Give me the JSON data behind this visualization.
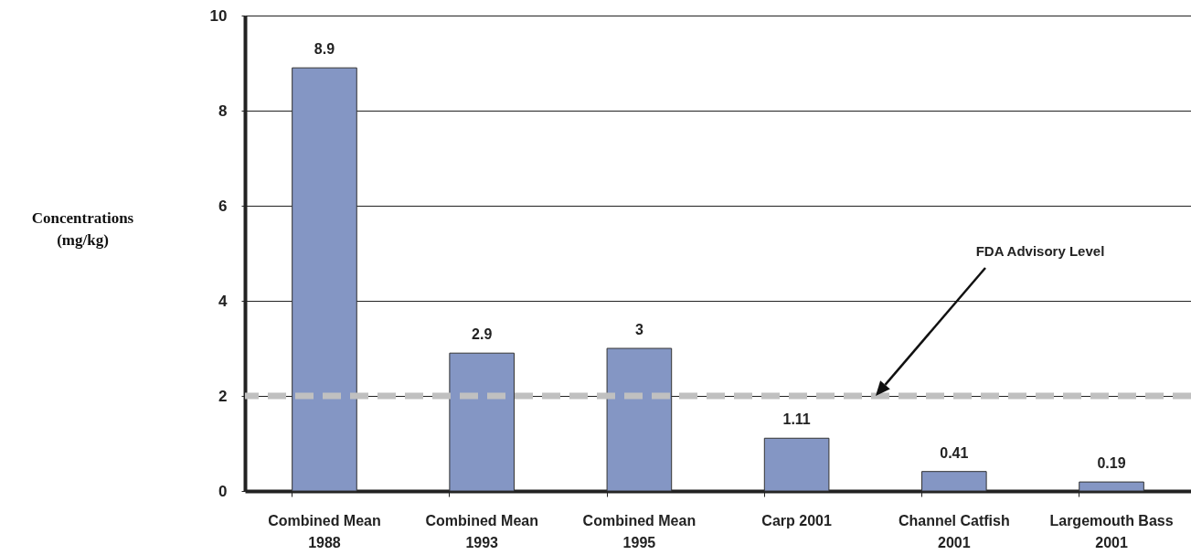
{
  "chart_data": {
    "type": "bar",
    "ylabel": "Concentrations (mg/kg)",
    "categories": [
      "Combined Mean 1988",
      "Combined Mean 1993",
      "Combined Mean 1995",
      "Carp  2001",
      "Channel Catfish 2001",
      "Largemouth Bass 2001"
    ],
    "values": [
      8.9,
      2.9,
      3,
      1.11,
      0.41,
      0.19
    ],
    "color": "#8496c4",
    "ylim": [
      0,
      10
    ],
    "yticks": [
      0,
      2,
      4,
      6,
      8,
      10
    ],
    "grid": "y",
    "data_labels": true,
    "annotations": [
      "FDA Advisory Level"
    ],
    "ref_lines": [
      {
        "axis": "y",
        "value": 2,
        "color": "#c0c0c0",
        "line_style": "dashed"
      }
    ]
  }
}
